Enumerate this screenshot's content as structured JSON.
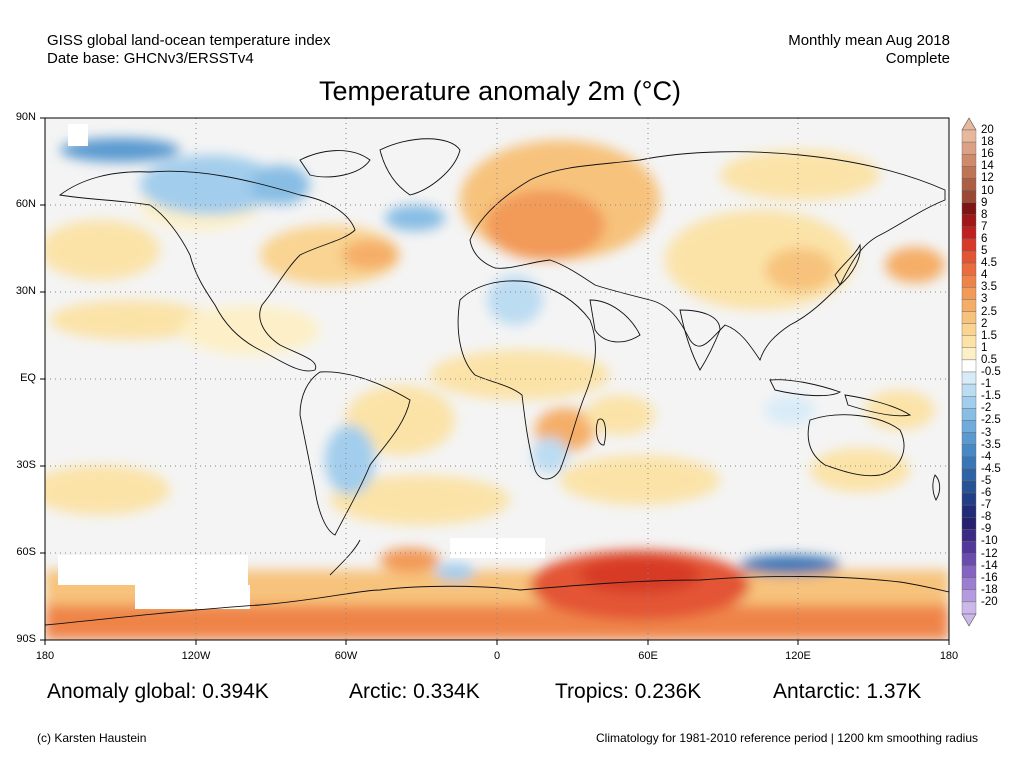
{
  "header": {
    "line1_left": "GISS global land-ocean temperature index",
    "line2_left": "Date base: GHCNv3/ERSSTv4",
    "line1_right": "Monthly mean Aug 2018",
    "line2_right": "Complete",
    "title": "Temperature anomaly 2m (°C)"
  },
  "stats": {
    "global": "Anomaly global: 0.394K",
    "arctic": "Arctic: 0.334K",
    "tropics": "Tropics: 0.236K",
    "antarctic": "Antarctic: 1.37K"
  },
  "footer": {
    "credit": "(c) Karsten Haustein",
    "note": "Climatology for 1981-2010 reference period | 1200 km smoothing radius"
  },
  "axes": {
    "lat_labels": [
      "90N",
      "60N",
      "30N",
      "EQ",
      "30S",
      "60S",
      "90S"
    ],
    "lon_labels": [
      "180",
      "120W",
      "60W",
      "0",
      "60E",
      "120E",
      "180"
    ],
    "lon_range": [
      -180,
      180
    ],
    "lat_range": [
      -90,
      90
    ],
    "grid": true
  },
  "colorbar": {
    "labels": [
      "20",
      "18",
      "16",
      "14",
      "12",
      "10",
      "9",
      "8",
      "7",
      "6",
      "5",
      "4.5",
      "4",
      "3.5",
      "3",
      "2.5",
      "2",
      "1.5",
      "1",
      "0.5",
      "-0.5",
      "-1",
      "-1.5",
      "-2",
      "-2.5",
      "-3",
      "-3.5",
      "-4",
      "-4.5",
      "-5",
      "-6",
      "-7",
      "-8",
      "-9",
      "-10",
      "-12",
      "-14",
      "-16",
      "-18",
      "-20"
    ],
    "colors": [
      "#e8b89c",
      "#dca084",
      "#cf8a6c",
      "#c07456",
      "#ae5e44",
      "#9a4a34",
      "#7e1414",
      "#a01818",
      "#c02020",
      "#d73a28",
      "#e35434",
      "#ea6c3e",
      "#ef844a",
      "#f29a58",
      "#f5ae68",
      "#f7c27c",
      "#f9d492",
      "#fbe3a8",
      "#fdf0c8",
      "#ffffff",
      "#d8ecf8",
      "#bcdcf2",
      "#a2cdec",
      "#88bde4",
      "#70acdb",
      "#5a9ad0",
      "#4888c4",
      "#3a76b6",
      "#2e64a6",
      "#265296",
      "#223e86",
      "#202c78",
      "#26206e",
      "#3c2a84",
      "#52389a",
      "#6a4cae",
      "#8464c0",
      "#9c7ed0",
      "#b49ade",
      "#ccb8ea"
    ]
  },
  "map_data": {
    "type": "heatmap",
    "anomalies": [
      {
        "lon": -140,
        "lat": 75,
        "value": -2.5
      },
      {
        "lon": -105,
        "lat": 70,
        "value": -1.5
      },
      {
        "lon": -35,
        "lat": 50,
        "value": -1.5
      },
      {
        "lon": -70,
        "lat": 40,
        "value": 1.5
      },
      {
        "lon": 30,
        "lat": 55,
        "value": 2.5
      },
      {
        "lon": 10,
        "lat": 25,
        "value": -1.5
      },
      {
        "lon": 30,
        "lat": -20,
        "value": 1.5
      },
      {
        "lon": -65,
        "lat": -22,
        "value": -1.5
      },
      {
        "lon": 120,
        "lat": 40,
        "value": 1.5
      },
      {
        "lon": 160,
        "lat": 35,
        "value": 2
      },
      {
        "lon": 60,
        "lat": -68,
        "value": 4
      },
      {
        "lon": 125,
        "lat": -63,
        "value": -3
      },
      {
        "lon": 0,
        "lat": -85,
        "value": 4
      }
    ]
  }
}
